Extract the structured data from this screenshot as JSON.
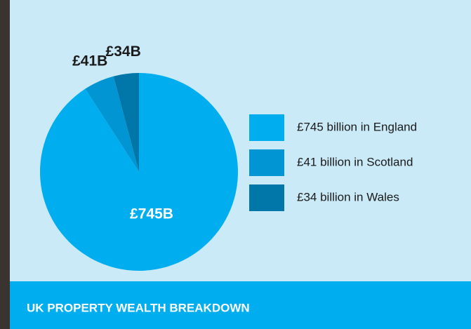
{
  "chart_data": {
    "type": "pie",
    "title": "UK PROPERTY WEALTH BREAKDOWN",
    "categories": [
      "£745 billion in England",
      "£41 billion in Scotland",
      "£34 billion in Wales"
    ],
    "values": [
      745,
      41,
      34
    ],
    "value_labels": [
      "£745B",
      "£41B",
      "£34B"
    ],
    "colors": [
      "#00aeef",
      "#0195d3",
      "#0077a8"
    ],
    "legend": "right"
  }
}
